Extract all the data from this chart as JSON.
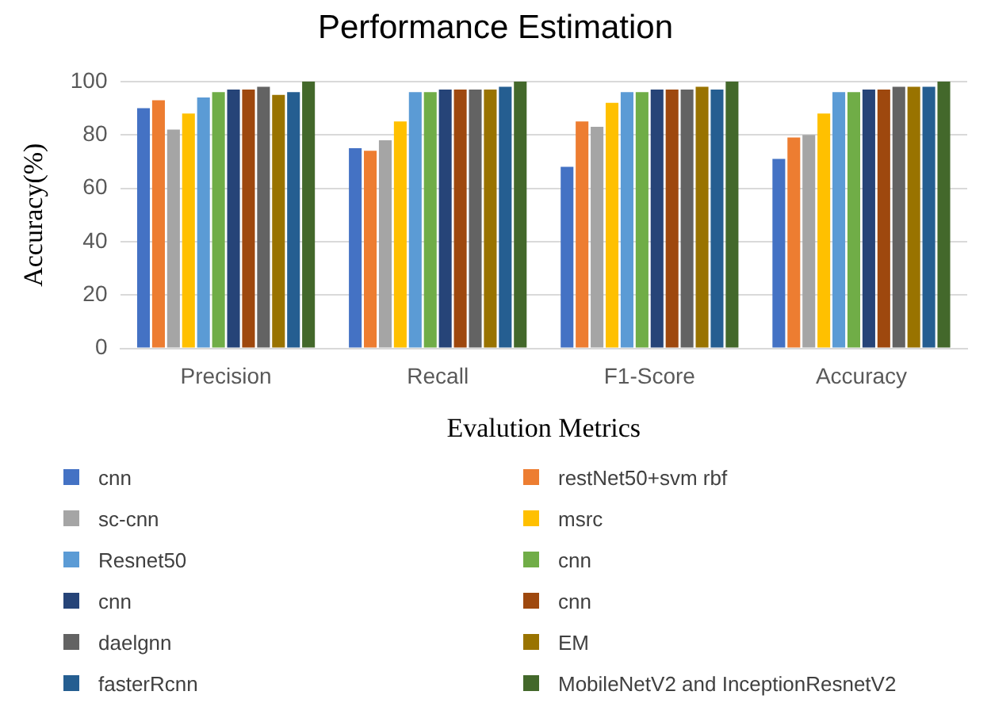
{
  "chart_data": {
    "type": "bar",
    "title": "Performance Estimation",
    "xlabel": "Evalution Metrics",
    "ylabel": "Accuracy(%)",
    "categories": [
      "Precision",
      "Recall",
      "F1-Score",
      "Accuracy"
    ],
    "ylim": [
      0,
      100
    ],
    "yticks": [
      0,
      20,
      40,
      60,
      80,
      100
    ],
    "grid": "y",
    "legend": "bottom",
    "series": [
      {
        "name": "cnn",
        "color": "#4472c4",
        "values": [
          90,
          75,
          68,
          71
        ]
      },
      {
        "name": "restNet50+svm rbf",
        "color": "#ed7d31",
        "values": [
          93,
          74,
          85,
          79
        ]
      },
      {
        "name": "sc-cnn",
        "color": "#a5a5a5",
        "values": [
          82,
          78,
          83,
          80
        ]
      },
      {
        "name": "msrc",
        "color": "#ffc000",
        "values": [
          88,
          85,
          92,
          88
        ]
      },
      {
        "name": "Resnet50",
        "color": "#5b9bd5",
        "values": [
          94,
          96,
          96,
          96
        ]
      },
      {
        "name": "cnn",
        "color": "#70ad47",
        "values": [
          96,
          96,
          96,
          96
        ]
      },
      {
        "name": "cnn",
        "color": "#264478",
        "values": [
          97,
          97,
          97,
          97
        ]
      },
      {
        "name": "cnn",
        "color": "#9e480e",
        "values": [
          97,
          97,
          97,
          97
        ]
      },
      {
        "name": "daelgnn",
        "color": "#636363",
        "values": [
          98,
          97,
          97,
          98
        ]
      },
      {
        "name": "EM",
        "color": "#997300",
        "values": [
          95,
          97,
          98,
          98
        ]
      },
      {
        "name": "fasterRcnn",
        "color": "#255e91",
        "values": [
          96,
          98,
          97,
          98
        ]
      },
      {
        "name": "MobileNetV2 and InceptionResnetV2",
        "color": "#43682b",
        "values": [
          100,
          100,
          100,
          100
        ]
      }
    ]
  }
}
